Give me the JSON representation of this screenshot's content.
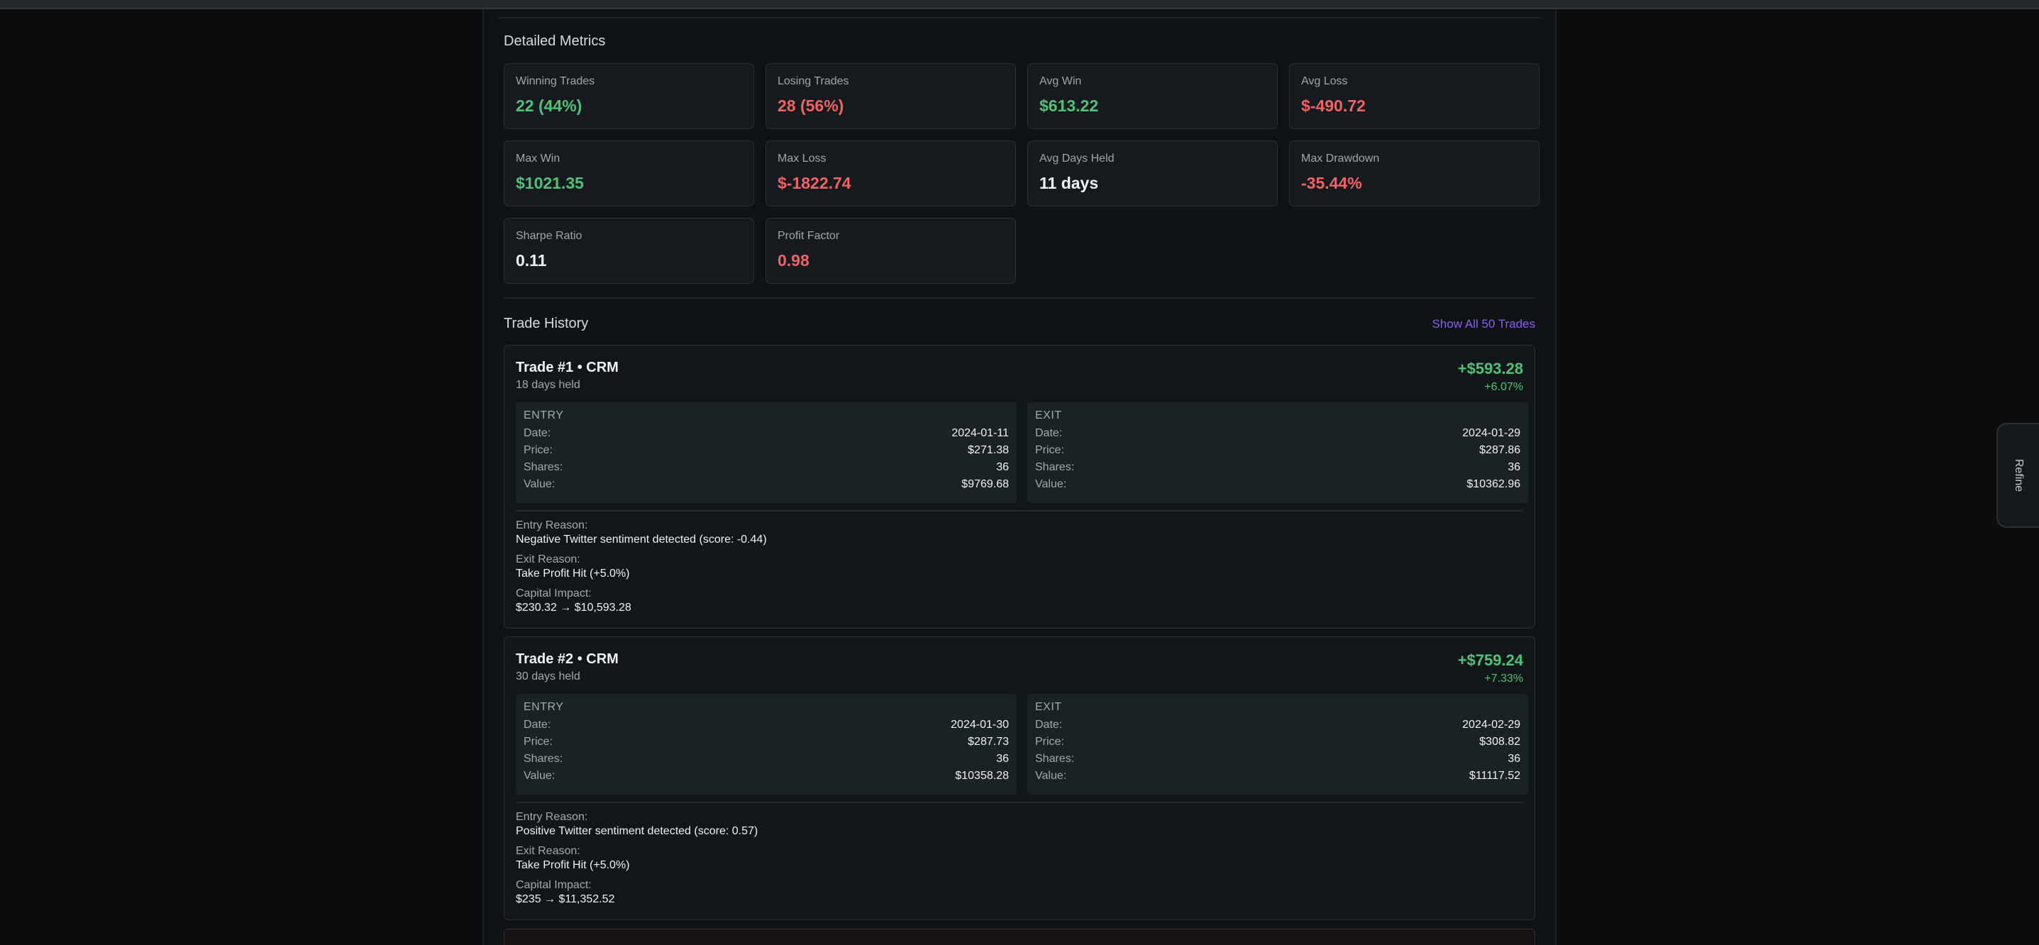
{
  "detailed_metrics": {
    "title": "Detailed Metrics",
    "cards": [
      {
        "label": "Winning Trades",
        "value": "22 (44%)",
        "tone": "green"
      },
      {
        "label": "Losing Trades",
        "value": "28 (56%)",
        "tone": "red"
      },
      {
        "label": "Avg Win",
        "value": "$613.22",
        "tone": "green"
      },
      {
        "label": "Avg Loss",
        "value": "$-490.72",
        "tone": "red"
      },
      {
        "label": "Max Win",
        "value": "$1021.35",
        "tone": "green"
      },
      {
        "label": "Max Loss",
        "value": "$-1822.74",
        "tone": "red"
      },
      {
        "label": "Avg Days Held",
        "value": "11 days",
        "tone": "white"
      },
      {
        "label": "Max Drawdown",
        "value": "-35.44%",
        "tone": "red"
      },
      {
        "label": "Sharpe Ratio",
        "value": "0.11",
        "tone": "white"
      },
      {
        "label": "Profit Factor",
        "value": "0.98",
        "tone": "red"
      }
    ]
  },
  "trade_history": {
    "title": "Trade History",
    "show_all_label": "Show All 50 Trades",
    "field_labels": {
      "date": "Date:",
      "price": "Price:",
      "shares": "Shares:",
      "value": "Value:",
      "entry_reason": "Entry Reason:",
      "exit_reason": "Exit Reason:",
      "capital_impact": "Capital Impact:"
    },
    "trades": [
      {
        "title": "Trade #1 • CRM",
        "days_held": "18 days held",
        "pl_amount": "+$593.28",
        "pl_percent": "+6.07%",
        "entry": {
          "title": "ENTRY",
          "date": "2024-01-11",
          "price": "$271.38",
          "shares": "36",
          "value": "$9769.68"
        },
        "exit": {
          "title": "EXIT",
          "date": "2024-01-29",
          "price": "$287.86",
          "shares": "36",
          "value": "$10362.96"
        },
        "entry_reason": "Negative Twitter sentiment detected (score: -0.44)",
        "exit_reason": "Take Profit Hit (+5.0%)",
        "capital_impact": "$230.32 → $10,593.28"
      },
      {
        "title": "Trade #2 • CRM",
        "days_held": "30 days held",
        "pl_amount": "+$759.24",
        "pl_percent": "+7.33%",
        "entry": {
          "title": "ENTRY",
          "date": "2024-01-30",
          "price": "$287.73",
          "shares": "36",
          "value": "$10358.28"
        },
        "exit": {
          "title": "EXIT",
          "date": "2024-02-29",
          "price": "$308.82",
          "shares": "36",
          "value": "$11117.52"
        },
        "entry_reason": "Positive Twitter sentiment detected (score: 0.57)",
        "exit_reason": "Take Profit Hit (+5.0%)",
        "capital_impact": "$235 → $11,352.52"
      }
    ]
  },
  "refine_tab": {
    "label": "Refine"
  },
  "colors": {
    "positive": "#4fc27a",
    "negative": "#f06363",
    "accent": "#8d5cf6"
  }
}
